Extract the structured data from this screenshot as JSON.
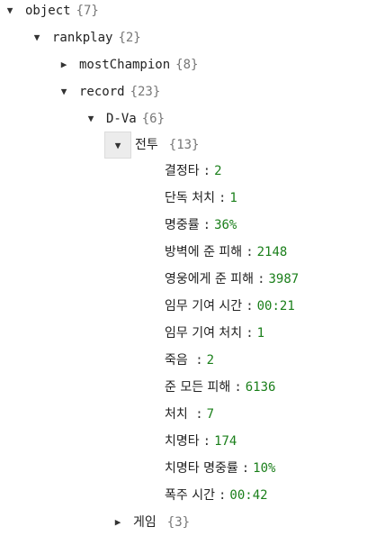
{
  "tree": {
    "root": {
      "key": "object",
      "count": "{7}",
      "arrow": "▼"
    },
    "rankplay": {
      "key": "rankplay",
      "count": "{2}",
      "arrow": "▼"
    },
    "mostChampion": {
      "key": "mostChampion",
      "count": "{8}",
      "arrow": "▶"
    },
    "record": {
      "key": "record",
      "count": "{23}",
      "arrow": "▼"
    },
    "dva": {
      "key": "D-Va",
      "count": "{6}",
      "arrow": "▼"
    },
    "combat": {
      "key": "전투",
      "count": "{13}",
      "arrow": "▼"
    },
    "stats": [
      {
        "key": "결정타",
        "value": "2"
      },
      {
        "key": "단독 처치",
        "value": "1"
      },
      {
        "key": "명중률",
        "value": "36%"
      },
      {
        "key": "방벽에 준 피해",
        "value": "2148"
      },
      {
        "key": "영웅에게 준 피해",
        "value": "3987"
      },
      {
        "key": "임무 기여 시간",
        "value": "00:21"
      },
      {
        "key": "임무 기여 처치",
        "value": "1"
      },
      {
        "key": "죽음 ",
        "value": "2"
      },
      {
        "key": "준 모든 피해",
        "value": "6136"
      },
      {
        "key": "처치 ",
        "value": "7"
      },
      {
        "key": "치명타",
        "value": "174"
      },
      {
        "key": "치명타 명중률",
        "value": "10%"
      },
      {
        "key": "폭주 시간",
        "value": "00:42"
      }
    ],
    "game": {
      "key": "게임",
      "count": "{3}",
      "arrow": "▶"
    }
  }
}
